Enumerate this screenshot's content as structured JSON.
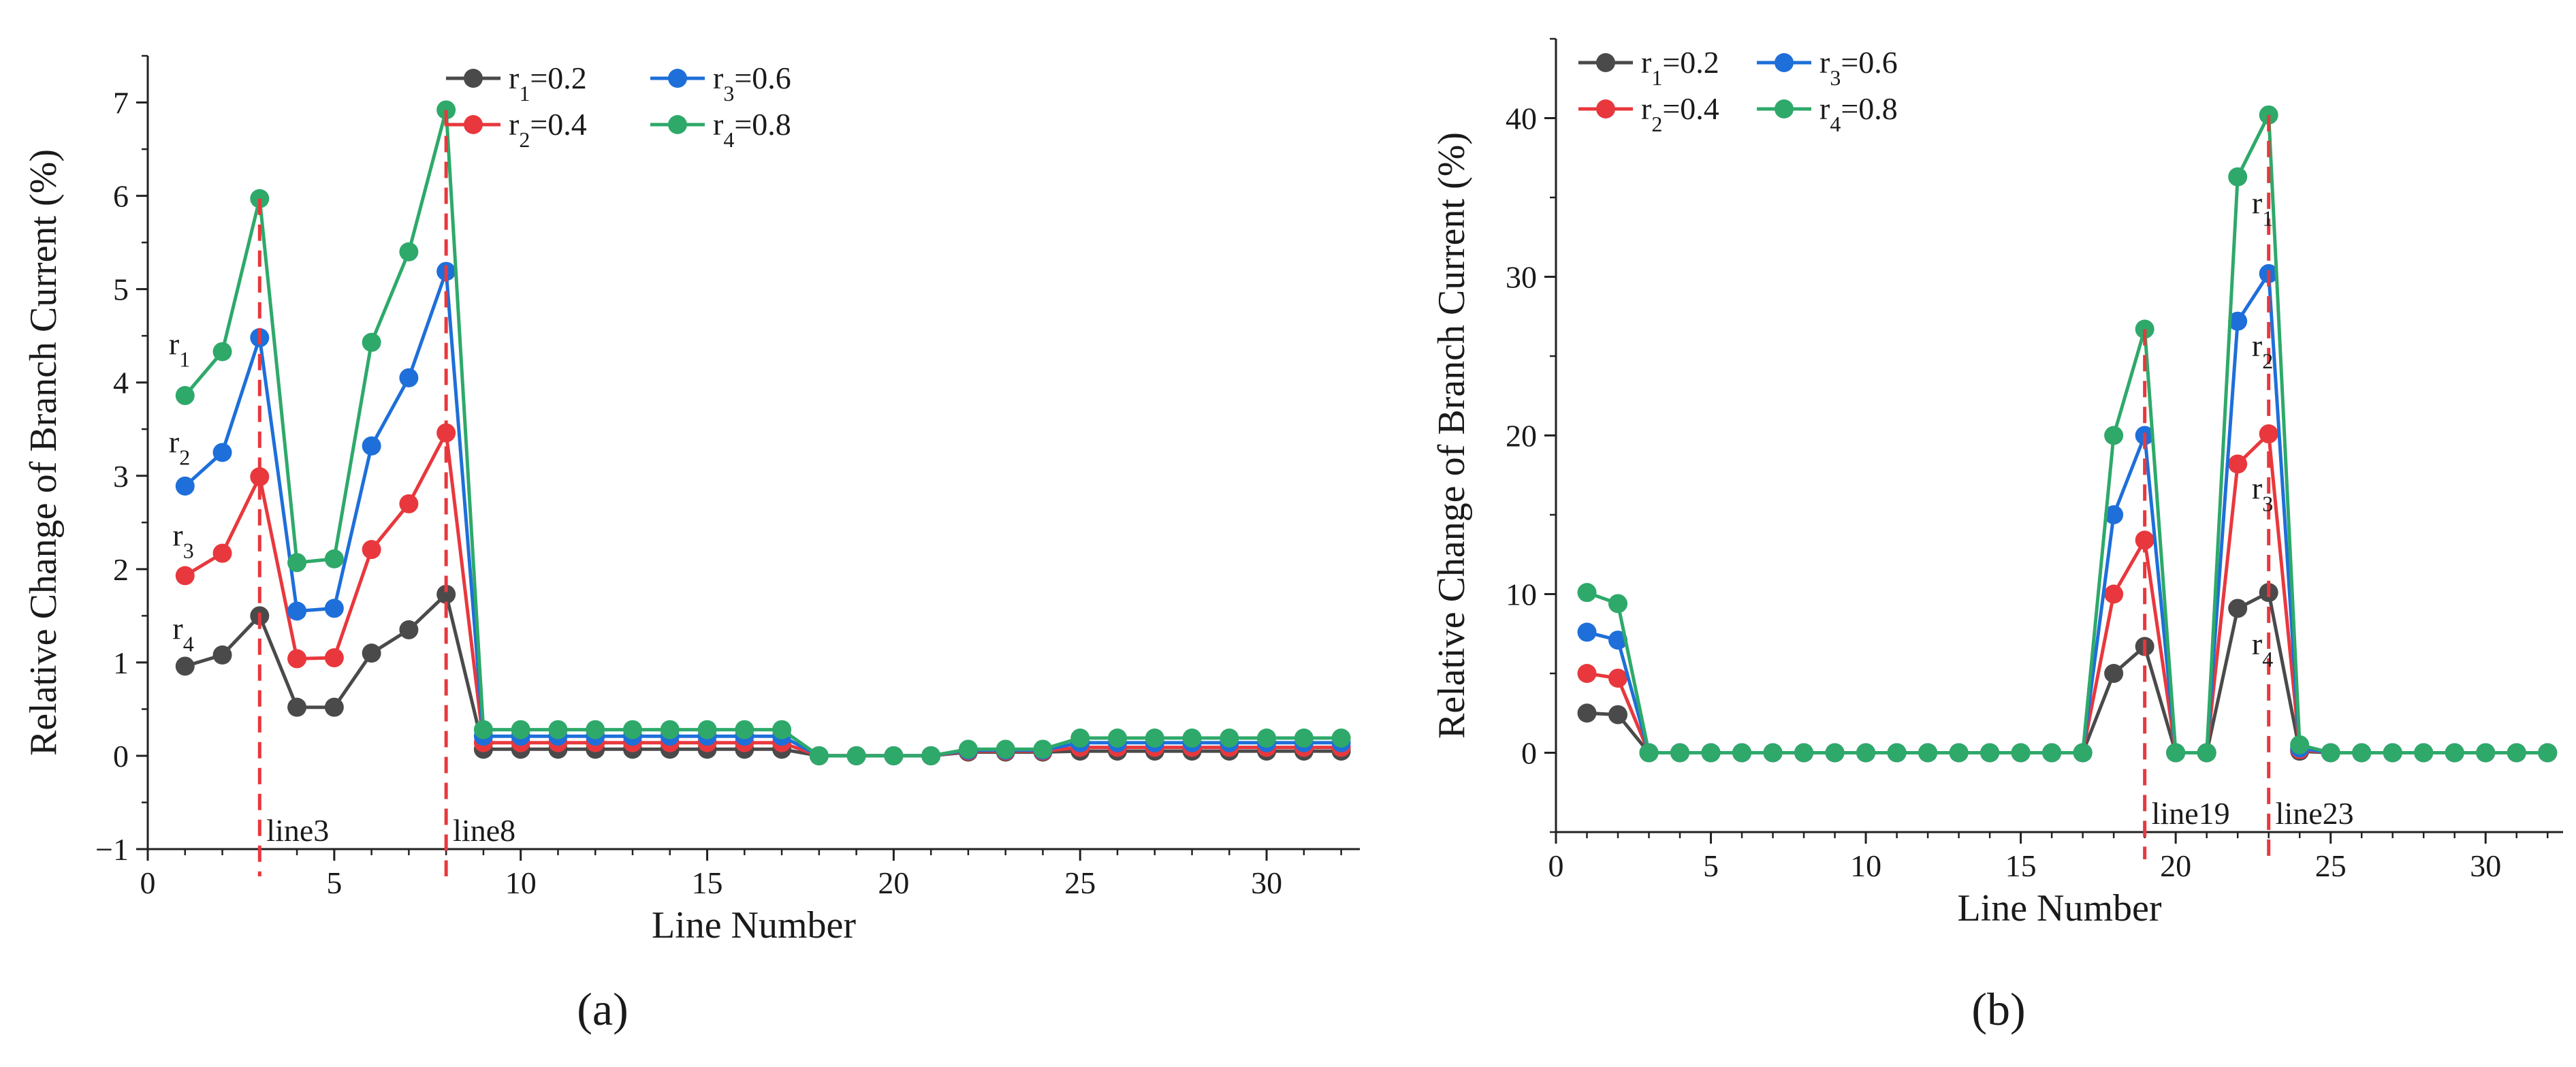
{
  "figure": {
    "panel_labels": [
      "(a)",
      "(b)"
    ]
  },
  "chart_data": [
    {
      "type": "line",
      "panel": "a",
      "title": "",
      "xlabel": "Line Number",
      "ylabel": "Relative Change of Branch Current (%)",
      "xlim": [
        0,
        32.5
      ],
      "ylim": [
        -1,
        7.5
      ],
      "xticks": [
        0,
        5,
        10,
        15,
        20,
        25,
        30
      ],
      "yticks": [
        -1,
        0,
        1,
        2,
        3,
        4,
        5,
        6,
        7
      ],
      "grid": false,
      "legend_position": "top-center",
      "x": [
        1,
        2,
        3,
        4,
        5,
        6,
        7,
        8,
        9,
        10,
        11,
        12,
        13,
        14,
        15,
        16,
        17,
        18,
        19,
        20,
        21,
        22,
        23,
        24,
        25,
        26,
        27,
        28,
        29,
        30,
        31,
        32
      ],
      "series": [
        {
          "name": "r1=0.2",
          "label_main": "r",
          "label_sub": "1",
          "label_rest": "=0.2",
          "color": "#4a4a4a",
          "values": [
            0.96,
            1.08,
            1.5,
            0.52,
            0.52,
            1.1,
            1.35,
            1.73,
            0.07,
            0.07,
            0.07,
            0.07,
            0.07,
            0.07,
            0.07,
            0.07,
            0.07,
            0.0,
            0.0,
            0.0,
            0.0,
            0.04,
            0.04,
            0.04,
            0.05,
            0.05,
            0.05,
            0.05,
            0.05,
            0.05,
            0.05,
            0.05
          ]
        },
        {
          "name": "r2=0.4",
          "label_main": "r",
          "label_sub": "2",
          "label_rest": "=0.4",
          "color": "#e8383d",
          "values": [
            1.93,
            2.17,
            2.99,
            1.04,
            1.05,
            2.21,
            2.7,
            3.46,
            0.14,
            0.14,
            0.14,
            0.14,
            0.14,
            0.14,
            0.14,
            0.14,
            0.14,
            0.0,
            0.0,
            0.0,
            0.0,
            0.05,
            0.05,
            0.05,
            0.09,
            0.09,
            0.09,
            0.09,
            0.09,
            0.09,
            0.09,
            0.09
          ]
        },
        {
          "name": "r3=0.6",
          "label_main": "r",
          "label_sub": "3",
          "label_rest": "=0.6",
          "color": "#1e6fd9",
          "values": [
            2.89,
            3.25,
            4.48,
            1.55,
            1.58,
            3.32,
            4.05,
            5.19,
            0.21,
            0.21,
            0.21,
            0.21,
            0.21,
            0.21,
            0.21,
            0.21,
            0.21,
            0.0,
            0.0,
            0.0,
            0.0,
            0.06,
            0.06,
            0.06,
            0.14,
            0.14,
            0.14,
            0.14,
            0.14,
            0.14,
            0.14,
            0.14
          ]
        },
        {
          "name": "r4=0.8",
          "label_main": "r",
          "label_sub": "4",
          "label_rest": "=0.8",
          "color": "#2ea96a",
          "values": [
            3.86,
            4.33,
            5.97,
            2.07,
            2.11,
            4.43,
            5.4,
            6.92,
            0.28,
            0.28,
            0.28,
            0.28,
            0.28,
            0.28,
            0.28,
            0.28,
            0.28,
            0.0,
            0.0,
            0.0,
            0.0,
            0.07,
            0.07,
            0.07,
            0.19,
            0.19,
            0.19,
            0.19,
            0.19,
            0.19,
            0.19,
            0.19
          ]
        }
      ],
      "annotations": [
        {
          "type": "vline",
          "x": 3,
          "text": "line3",
          "color": "#e8383d"
        },
        {
          "type": "vline",
          "x": 8,
          "text": "line8",
          "color": "#e8383d"
        }
      ],
      "series_labels": [
        {
          "main": "r",
          "sub": "1",
          "x": 0.85,
          "y": 4.3
        },
        {
          "main": "r",
          "sub": "2",
          "x": 0.85,
          "y": 3.25
        },
        {
          "main": "r",
          "sub": "3",
          "x": 0.95,
          "y": 2.25
        },
        {
          "main": "r",
          "sub": "4",
          "x": 0.95,
          "y": 1.25
        }
      ]
    },
    {
      "type": "line",
      "panel": "b",
      "title": "",
      "xlabel": "Line Number",
      "ylabel": "Relative Change of Branch Current (%)",
      "xlim": [
        0,
        32.5
      ],
      "ylim": [
        -5,
        45
      ],
      "xticks": [
        0,
        5,
        10,
        15,
        20,
        25,
        30
      ],
      "yticks": [
        0,
        10,
        20,
        30,
        40
      ],
      "grid": false,
      "legend_position": "top-left",
      "x": [
        1,
        2,
        3,
        4,
        5,
        6,
        7,
        8,
        9,
        10,
        11,
        12,
        13,
        14,
        15,
        16,
        17,
        18,
        19,
        20,
        21,
        22,
        23,
        24,
        25,
        26,
        27,
        28,
        29,
        30,
        31,
        32
      ],
      "series": [
        {
          "name": "r1=0.2",
          "label_main": "r",
          "label_sub": "1",
          "label_rest": "=0.2",
          "color": "#4a4a4a",
          "values": [
            2.5,
            2.4,
            0,
            0,
            0,
            0,
            0,
            0,
            0,
            0,
            0,
            0,
            0,
            0,
            0,
            0,
            0,
            5.0,
            6.7,
            0,
            0,
            9.1,
            10.1,
            0.1,
            0,
            0,
            0,
            0,
            0,
            0,
            0,
            0
          ]
        },
        {
          "name": "r2=0.4",
          "label_main": "r",
          "label_sub": "2",
          "label_rest": "=0.4",
          "color": "#e8383d",
          "values": [
            5.0,
            4.7,
            0,
            0,
            0,
            0,
            0,
            0,
            0,
            0,
            0,
            0,
            0,
            0,
            0,
            0,
            0,
            10.0,
            13.4,
            0,
            0,
            18.2,
            20.1,
            0.2,
            0,
            0,
            0,
            0,
            0,
            0,
            0,
            0
          ]
        },
        {
          "name": "r3=0.6",
          "label_main": "r",
          "label_sub": "3",
          "label_rest": "=0.6",
          "color": "#1e6fd9",
          "values": [
            7.6,
            7.1,
            0,
            0,
            0,
            0,
            0,
            0,
            0,
            0,
            0,
            0,
            0,
            0,
            0,
            0,
            0,
            15.0,
            20.0,
            0,
            0,
            27.2,
            30.2,
            0.3,
            0,
            0,
            0,
            0,
            0,
            0,
            0,
            0
          ]
        },
        {
          "name": "r4=0.8",
          "label_main": "r",
          "label_sub": "4",
          "label_rest": "=0.8",
          "color": "#2ea96a",
          "values": [
            10.1,
            9.4,
            0,
            0,
            0,
            0,
            0,
            0,
            0,
            0,
            0,
            0,
            0,
            0,
            0,
            0,
            0,
            20.0,
            26.7,
            0,
            0,
            36.3,
            40.2,
            0.5,
            0,
            0,
            0,
            0,
            0,
            0,
            0,
            0
          ]
        }
      ],
      "annotations": [
        {
          "type": "vline",
          "x": 19,
          "text": "line19",
          "color": "#e8383d"
        },
        {
          "type": "vline",
          "x": 23,
          "text": "line23",
          "color": "#e8383d"
        }
      ],
      "series_labels": [
        {
          "main": "r",
          "sub": "1",
          "x": 22.8,
          "y": 34.0
        },
        {
          "main": "r",
          "sub": "2",
          "x": 22.8,
          "y": 25.0
        },
        {
          "main": "r",
          "sub": "3",
          "x": 22.8,
          "y": 16.0
        },
        {
          "main": "r",
          "sub": "4",
          "x": 22.8,
          "y": 6.2
        }
      ]
    }
  ]
}
